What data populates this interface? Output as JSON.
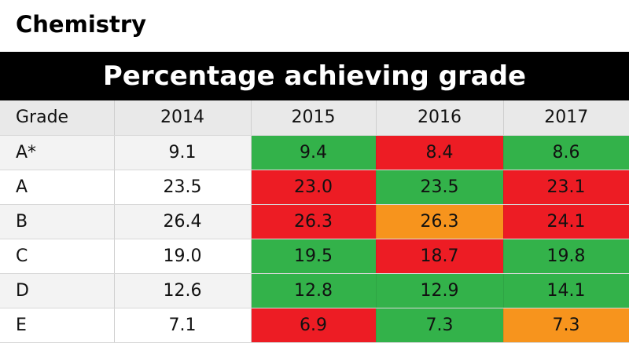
{
  "subject": "Chemistry",
  "banner": "Percentage achieving grade",
  "colors": {
    "green": "#33b24a",
    "red": "#ed1c24",
    "orange": "#f7941d"
  },
  "chart_data": {
    "type": "table",
    "title": "Percentage achieving grade",
    "columns": [
      "Grade",
      "2014",
      "2015",
      "2016",
      "2017"
    ],
    "rows": [
      {
        "grade": "A*",
        "values": [
          "9.1",
          "9.4",
          "8.4",
          "8.6"
        ],
        "status": [
          null,
          "green",
          "red",
          "green"
        ]
      },
      {
        "grade": "A",
        "values": [
          "23.5",
          "23.0",
          "23.5",
          "23.1"
        ],
        "status": [
          null,
          "red",
          "green",
          "red"
        ]
      },
      {
        "grade": "B",
        "values": [
          "26.4",
          "26.3",
          "26.3",
          "24.1"
        ],
        "status": [
          null,
          "red",
          "orange",
          "red"
        ]
      },
      {
        "grade": "C",
        "values": [
          "19.0",
          "19.5",
          "18.7",
          "19.8"
        ],
        "status": [
          null,
          "green",
          "red",
          "green"
        ]
      },
      {
        "grade": "D",
        "values": [
          "12.6",
          "12.8",
          "12.9",
          "14.1"
        ],
        "status": [
          null,
          "green",
          "green",
          "green"
        ]
      },
      {
        "grade": "E",
        "values": [
          "7.1",
          "6.9",
          "7.3",
          "7.3"
        ],
        "status": [
          null,
          "red",
          "green",
          "orange"
        ]
      }
    ]
  }
}
